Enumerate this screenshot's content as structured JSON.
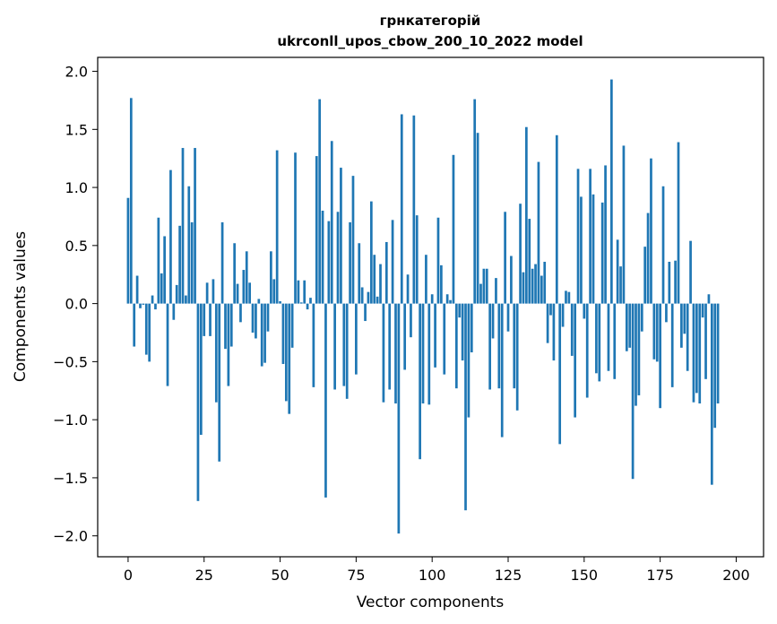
{
  "chart_data": {
    "type": "bar",
    "title_line1": "грнкатегорій",
    "title_line2": "ukrconll_upos_cbow_200_10_2022 model",
    "xlabel": "Vector components",
    "ylabel": "Components values",
    "xlim": [
      -10,
      209
    ],
    "ylim": [
      -2.18,
      2.12
    ],
    "xticks": [
      0,
      25,
      50,
      75,
      100,
      125,
      150,
      175,
      200
    ],
    "yticks": [
      -2.0,
      -1.5,
      -1.0,
      -0.5,
      0.0,
      0.5,
      1.0,
      1.5,
      2.0
    ],
    "ytick_labels": [
      "−2.0",
      "−1.5",
      "−1.0",
      "−0.5",
      "0.0",
      "0.5",
      "1.0",
      "1.5",
      "2.0"
    ],
    "bar_color": "#1f77b4",
    "values": [
      0.91,
      1.77,
      -0.37,
      0.24,
      -0.04,
      -0.01,
      -0.44,
      -0.5,
      0.07,
      -0.05,
      0.74,
      0.26,
      0.58,
      -0.71,
      1.15,
      -0.14,
      0.16,
      0.67,
      1.34,
      0.07,
      1.01,
      0.7,
      1.34,
      -1.7,
      -1.13,
      -0.28,
      0.18,
      -0.28,
      0.21,
      -0.85,
      -1.36,
      0.7,
      -0.39,
      -0.71,
      -0.37,
      0.52,
      0.17,
      -0.16,
      0.29,
      0.45,
      0.18,
      -0.25,
      -0.3,
      0.04,
      -0.54,
      -0.51,
      -0.24,
      0.45,
      0.21,
      1.32,
      0.02,
      -0.52,
      -0.84,
      -0.95,
      -0.38,
      1.3,
      0.2,
      0.01,
      0.2,
      -0.05,
      0.05,
      -0.72,
      1.27,
      1.76,
      0.8,
      -1.67,
      0.71,
      1.4,
      -0.74,
      0.79,
      1.17,
      -0.71,
      -0.82,
      0.7,
      1.1,
      -0.61,
      0.52,
      0.14,
      -0.15,
      0.1,
      0.88,
      0.42,
      0.06,
      0.34,
      -0.85,
      0.53,
      -0.74,
      0.72,
      -0.86,
      -1.98,
      1.63,
      -0.57,
      0.25,
      -0.29,
      1.62,
      0.76,
      -1.34,
      -0.86,
      0.42,
      -0.87,
      0.08,
      -0.55,
      0.74,
      0.33,
      -0.61,
      0.08,
      0.03,
      1.28,
      -0.73,
      -0.12,
      -0.49,
      -1.78,
      -0.98,
      -0.42,
      1.76,
      1.47,
      0.17,
      0.3,
      0.3,
      -0.74,
      -0.3,
      0.22,
      -0.73,
      -1.15,
      0.79,
      -0.24,
      0.41,
      -0.73,
      -0.92,
      0.86,
      0.27,
      1.52,
      0.73,
      0.3,
      0.34,
      1.22,
      0.24,
      0.36,
      -0.34,
      -0.1,
      -0.49,
      1.45,
      -1.21,
      -0.2,
      0.11,
      0.1,
      -0.45,
      -0.98,
      1.16,
      0.92,
      -0.13,
      -0.81,
      1.16,
      0.94,
      -0.6,
      -0.67,
      0.87,
      1.19,
      -0.58,
      1.93,
      -0.65,
      0.55,
      0.32,
      1.36,
      -0.41,
      -0.38,
      -1.51,
      -0.88,
      -0.79,
      -0.24,
      0.49,
      0.78,
      1.25,
      -0.48,
      -0.5,
      -0.9,
      1.01,
      -0.16,
      0.36,
      -0.72,
      0.37,
      1.39,
      -0.38,
      -0.26,
      -0.58,
      0.54,
      -0.85,
      -0.77,
      -0.86,
      -0.12,
      -0.65,
      0.08,
      -1.56,
      -1.07,
      -0.86
    ]
  }
}
